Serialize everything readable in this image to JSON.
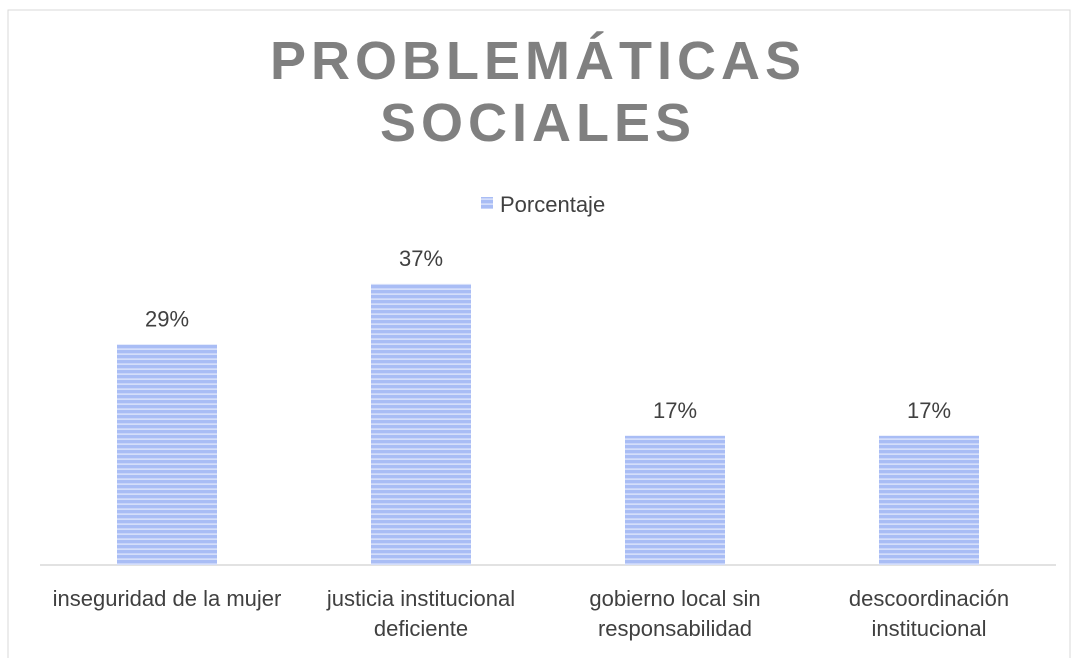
{
  "chart_data": {
    "type": "bar",
    "title": "PROBLEMÁTICAS SOCIALES",
    "categories": [
      "inseguridad de la mujer",
      "justicia institucional deficiente",
      "gobierno local sin responsabilidad",
      "descoordinación institucional"
    ],
    "series": [
      {
        "name": "Porcentaje",
        "color": "#a9bdf5",
        "values": [
          29,
          37,
          17,
          17
        ],
        "value_labels": [
          "29%",
          "37%",
          "17%",
          "17%"
        ]
      }
    ]
  }
}
